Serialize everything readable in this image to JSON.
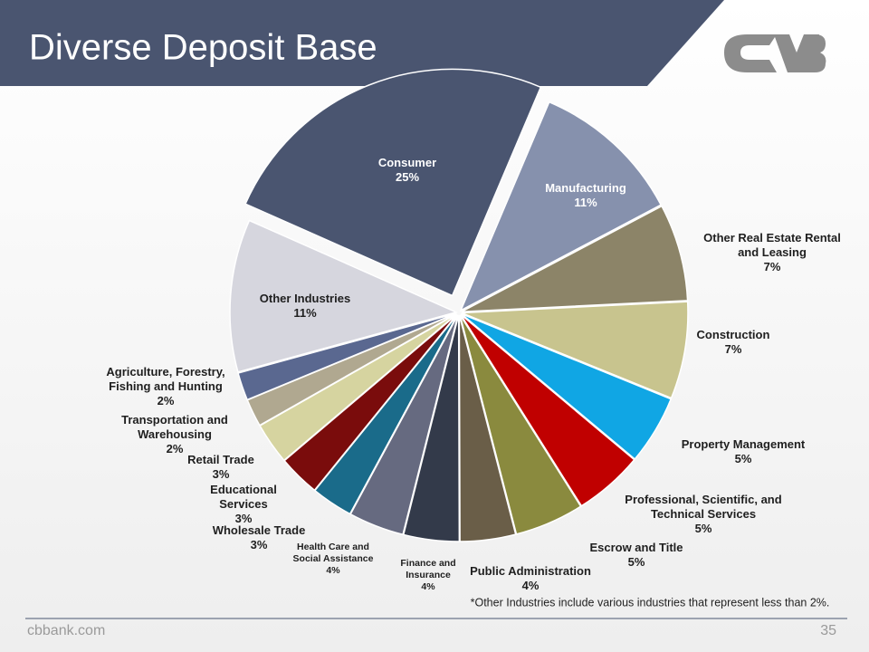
{
  "chart_data": {
    "type": "pie",
    "title": "Diverse Deposit Base",
    "categories": [
      "Manufacturing",
      "Other Real Estate Rental and Leasing",
      "Construction",
      "Property Management",
      "Professional, Scientific, and Technical Services",
      "Escrow and Title",
      "Public Administration",
      "Finance and Insurance",
      "Health Care and Social Assistance",
      "Wholesale Trade",
      "Educational Services",
      "Retail Trade",
      "Transportation and Warehousing",
      "Agriculture, Forestry, Fishing and Hunting",
      "Other Industries",
      "Consumer"
    ],
    "values": [
      11,
      7,
      7,
      5,
      5,
      5,
      4,
      4,
      4,
      3,
      3,
      3,
      2,
      2,
      11,
      25
    ],
    "value_labels": [
      "11%",
      "7%",
      "7%",
      "5%",
      "5%",
      "5%",
      "4%",
      "4%",
      "4%",
      "3%",
      "3%",
      "3%",
      "2%",
      "2%",
      "11%",
      "25%"
    ],
    "colors": [
      "#8691ad",
      "#8c8468",
      "#c8c48e",
      "#10a6e4",
      "#c00000",
      "#8a8a3e",
      "#6a5e48",
      "#333a4a",
      "#666a80",
      "#1a6b8a",
      "#7a0c0c",
      "#d6d4a0",
      "#b0a890",
      "#5a6890",
      "#d6d6de",
      "#4a5570"
    ],
    "note": "*Other Industries include various industries that represent less than 2%."
  },
  "footer": {
    "site": "cbbank.com",
    "page": "35"
  }
}
